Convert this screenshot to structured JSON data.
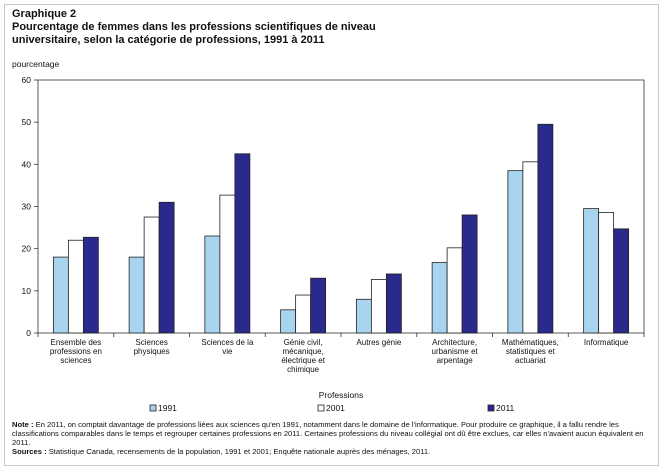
{
  "header": {
    "graph_label": "Graphique 2",
    "title": "Pourcentage de femmes dans les professions scientifiques de niveau\nuniversitaire, selon la catégorie de professions, 1991 à 2011",
    "unit_label": "pourcentage"
  },
  "chart_data": {
    "type": "bar",
    "categories": [
      [
        "Ensemble des",
        "professions en",
        "sciences"
      ],
      [
        "Sciences",
        "physiques"
      ],
      [
        "Sciences de la",
        "vie"
      ],
      [
        "Génie civil,",
        "mécanique,",
        "électrique et",
        "chimique"
      ],
      [
        "Autres génie"
      ],
      [
        "Architecture,",
        "urbanisme et",
        "arpentage"
      ],
      [
        "Mathématiques,",
        "statistiques et",
        "actuariat"
      ],
      [
        "Informatique"
      ]
    ],
    "series": [
      {
        "name": "1991",
        "color": "#a8d4f0",
        "values": [
          18,
          18,
          23,
          5.5,
          8,
          16.7,
          38.5,
          29.5
        ]
      },
      {
        "name": "2001",
        "color": "#ffffff",
        "values": [
          22,
          27.5,
          32.7,
          9,
          12.7,
          20.2,
          40.6,
          28.6
        ]
      },
      {
        "name": "2011",
        "color": "#2a2a8c",
        "values": [
          22.7,
          31,
          42.5,
          13,
          14,
          28,
          49.5,
          24.7
        ]
      }
    ],
    "ylim": [
      0,
      60
    ],
    "yticks": [
      0,
      10,
      20,
      30,
      40,
      50,
      60
    ],
    "xlabel": "Professions",
    "ylabel": "pourcentage",
    "grid": false,
    "legend_position": "bottom"
  },
  "notes": {
    "note_label": "Note :",
    "note_text": " En 2011, on comptait davantage de professions liées aux sciences qu'en 1991, notamment dans le domaine de l'informatique. Pour produire ce graphique, il a fallu rendre les classifications comparables dans le temps et regrouper certaines professions en 2011. Certaines professions du niveau collégial ont dû être exclues, car elles n'avaient aucun équivalent en 2011.",
    "sources_label": "Sources :",
    "sources_text": " Statistique Canada, recensements de la population, 1991 et 2001; Enquête nationale auprès des ménages, 2011."
  }
}
